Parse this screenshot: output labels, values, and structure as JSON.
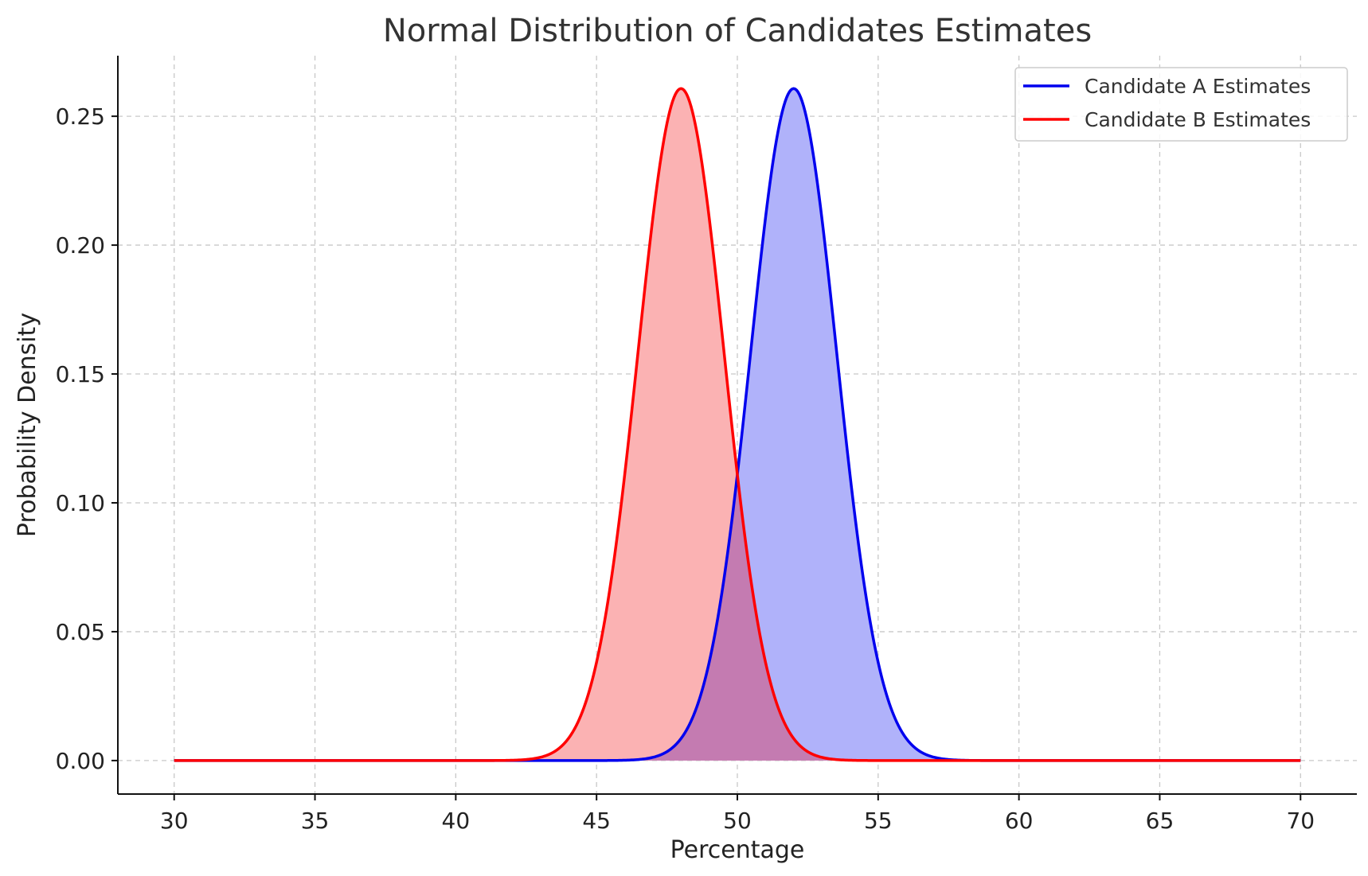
{
  "chart_data": {
    "type": "area",
    "title": "Normal Distribution of Candidates Estimates",
    "xlabel": "Percentage",
    "ylabel": "Probability Density",
    "xlim": [
      28,
      72
    ],
    "ylim": [
      -0.013,
      0.2735
    ],
    "x_ticks": [
      30,
      35,
      40,
      45,
      50,
      55,
      60,
      65,
      70
    ],
    "x_tick_labels": [
      "30",
      "35",
      "40",
      "45",
      "50",
      "55",
      "60",
      "65",
      "70"
    ],
    "y_ticks": [
      0.0,
      0.05,
      0.1,
      0.15,
      0.2,
      0.25
    ],
    "y_tick_labels": [
      "0.00",
      "0.05",
      "0.10",
      "0.15",
      "0.20",
      "0.25"
    ],
    "grid": true,
    "legend_position": "top-right",
    "x_range": [
      30,
      70
    ],
    "series": [
      {
        "name": "Candidate A Estimates",
        "distribution": "normal",
        "mean": 52,
        "std": 1.53,
        "line_color": "#0000ee",
        "fill_color": "#b0b2fa"
      },
      {
        "name": "Candidate B Estimates",
        "distribution": "normal",
        "mean": 48,
        "std": 1.53,
        "line_color": "#ff0000",
        "fill_color": "#fbb2b3"
      }
    ],
    "overlap_color": "#c47bb1"
  }
}
